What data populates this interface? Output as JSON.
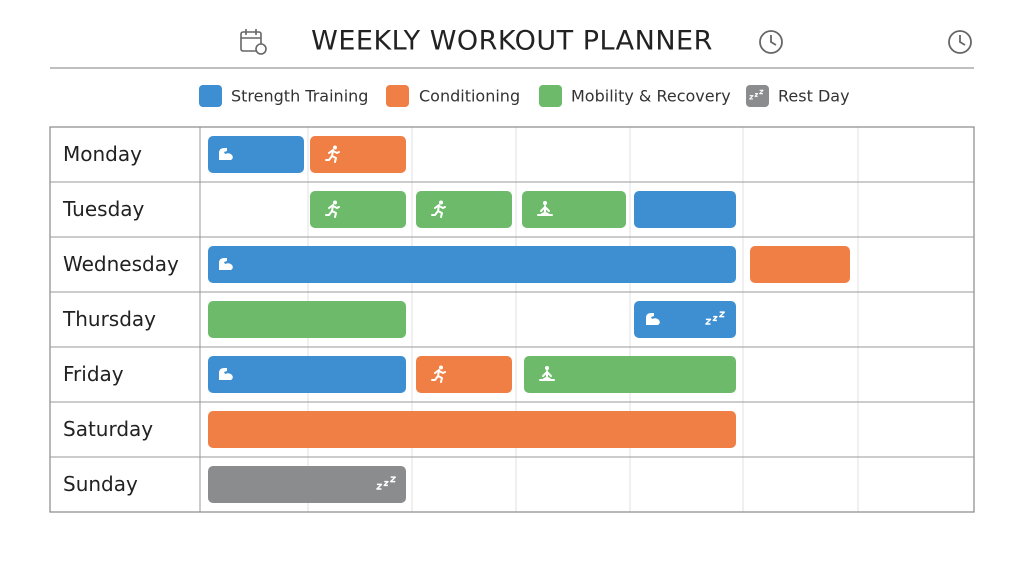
{
  "header": {
    "title": "WEEKLY WORKOUT PLANNER"
  },
  "legend": [
    "Strength Training",
    "Conditioning",
    "Mobility & Recovery",
    "Rest Day"
  ],
  "days": [
    "Monday",
    "Tuesday",
    "Wednesday",
    "Thursday",
    "Friday",
    "Saturday",
    "Sunday"
  ]
}
